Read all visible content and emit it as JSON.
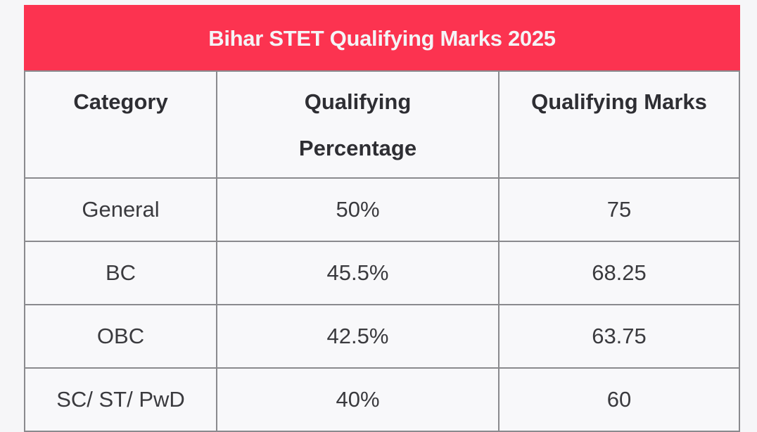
{
  "table": {
    "title": "Bihar STET Qualifying Marks 2025",
    "header_color": "#fc3350",
    "columns": [
      "Category",
      "Qualifying Percentage",
      "Qualifying Marks"
    ],
    "column_lines": {
      "col2_line1": "Qualifying",
      "col2_line2": "Percentage"
    },
    "rows": [
      [
        "General",
        "50%",
        "75"
      ],
      [
        "BC",
        "45.5%",
        "68.25"
      ],
      [
        "OBC",
        "42.5%",
        "63.75"
      ],
      [
        "SC/ ST/ PwD",
        "40%",
        "60"
      ]
    ]
  }
}
